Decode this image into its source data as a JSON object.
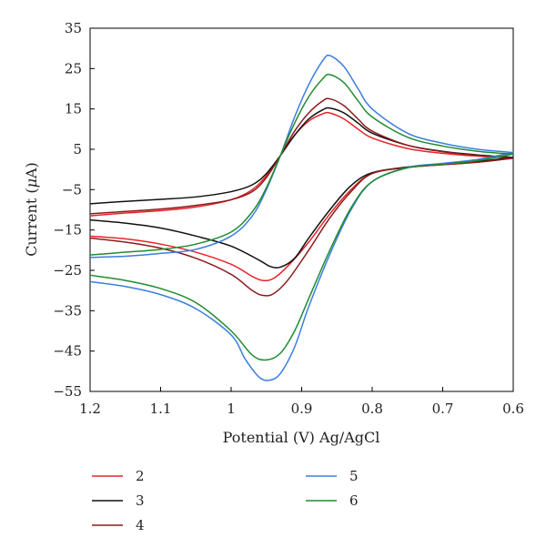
{
  "chart_data": {
    "type": "line",
    "title": "",
    "xlabel": "Potential (V) Ag/AgCl",
    "ylabel_prefix": "Current (",
    "ylabel_mu": "μ",
    "ylabel_suffix": "A)",
    "xlim": [
      1.2,
      0.6
    ],
    "ylim": [
      -55,
      35
    ],
    "x_reversed": true,
    "x_ticks": [
      1.2,
      1.1,
      1.0,
      0.9,
      0.8,
      0.7,
      0.6
    ],
    "x_tick_labels": [
      "1.2",
      "1.1",
      "1",
      "0.9",
      "0.8",
      "0.7",
      "0.6"
    ],
    "y_ticks": [
      35,
      25,
      15,
      5,
      -5,
      -15,
      -25,
      -35,
      -45,
      -55
    ],
    "y_tick_labels": [
      "35",
      "25",
      "15",
      "5",
      "−5",
      "−15",
      "−25",
      "−35",
      "−45",
      "−55"
    ],
    "grid": false,
    "legend_position": "bottom",
    "series": [
      {
        "name": "2",
        "color": "#e8242b",
        "forward": [
          [
            1.2,
            -11.5
          ],
          [
            1.15,
            -10.8
          ],
          [
            1.1,
            -10.2
          ],
          [
            1.05,
            -9.3
          ],
          [
            1.0,
            -7.5
          ],
          [
            0.97,
            -5.0
          ],
          [
            0.95,
            -1.5
          ],
          [
            0.93,
            3.5
          ],
          [
            0.91,
            8.5
          ],
          [
            0.89,
            12.0
          ],
          [
            0.87,
            13.8
          ],
          [
            0.86,
            14.0
          ],
          [
            0.84,
            12.5
          ],
          [
            0.82,
            10.0
          ],
          [
            0.8,
            7.8
          ],
          [
            0.75,
            5.2
          ],
          [
            0.7,
            4.0
          ],
          [
            0.65,
            3.3
          ],
          [
            0.6,
            2.8
          ]
        ],
        "reverse": [
          [
            0.6,
            2.8
          ],
          [
            0.65,
            1.8
          ],
          [
            0.7,
            1.2
          ],
          [
            0.75,
            0.5
          ],
          [
            0.8,
            -1.0
          ],
          [
            0.83,
            -5.0
          ],
          [
            0.86,
            -11.0
          ],
          [
            0.89,
            -18.0
          ],
          [
            0.92,
            -24.0
          ],
          [
            0.94,
            -27.0
          ],
          [
            0.955,
            -27.5
          ],
          [
            0.97,
            -26.5
          ],
          [
            1.0,
            -23.5
          ],
          [
            1.05,
            -20.5
          ],
          [
            1.1,
            -18.5
          ],
          [
            1.15,
            -17.2
          ],
          [
            1.2,
            -16.5
          ]
        ]
      },
      {
        "name": "3",
        "color": "#111111",
        "forward": [
          [
            1.2,
            -8.5
          ],
          [
            1.15,
            -7.9
          ],
          [
            1.1,
            -7.4
          ],
          [
            1.05,
            -6.8
          ],
          [
            1.0,
            -5.5
          ],
          [
            0.97,
            -3.8
          ],
          [
            0.95,
            -1.0
          ],
          [
            0.93,
            3.5
          ],
          [
            0.91,
            8.5
          ],
          [
            0.89,
            12.5
          ],
          [
            0.87,
            14.8
          ],
          [
            0.86,
            15.2
          ],
          [
            0.84,
            14.0
          ],
          [
            0.82,
            11.5
          ],
          [
            0.8,
            9.0
          ],
          [
            0.75,
            6.0
          ],
          [
            0.7,
            4.5
          ],
          [
            0.65,
            3.6
          ],
          [
            0.6,
            3.0
          ]
        ],
        "reverse": [
          [
            0.6,
            3.0
          ],
          [
            0.65,
            2.0
          ],
          [
            0.7,
            1.3
          ],
          [
            0.75,
            0.6
          ],
          [
            0.8,
            -0.8
          ],
          [
            0.83,
            -4.0
          ],
          [
            0.86,
            -10.0
          ],
          [
            0.89,
            -17.0
          ],
          [
            0.91,
            -22.0
          ],
          [
            0.93,
            -24.2
          ],
          [
            0.945,
            -24.0
          ],
          [
            0.96,
            -22.5
          ],
          [
            1.0,
            -19.0
          ],
          [
            1.05,
            -16.5
          ],
          [
            1.1,
            -14.5
          ],
          [
            1.15,
            -13.3
          ],
          [
            1.2,
            -12.5
          ]
        ]
      },
      {
        "name": "4",
        "color": "#8b1a1a",
        "forward": [
          [
            1.2,
            -11.0
          ],
          [
            1.15,
            -10.4
          ],
          [
            1.1,
            -9.8
          ],
          [
            1.05,
            -8.9
          ],
          [
            1.0,
            -7.5
          ],
          [
            0.97,
            -5.5
          ],
          [
            0.95,
            -2.0
          ],
          [
            0.93,
            3.5
          ],
          [
            0.91,
            9.5
          ],
          [
            0.89,
            14.0
          ],
          [
            0.87,
            17.0
          ],
          [
            0.86,
            17.5
          ],
          [
            0.84,
            15.8
          ],
          [
            0.82,
            12.5
          ],
          [
            0.8,
            9.5
          ],
          [
            0.75,
            6.0
          ],
          [
            0.7,
            4.4
          ],
          [
            0.65,
            3.5
          ],
          [
            0.6,
            2.8
          ]
        ],
        "reverse": [
          [
            0.6,
            2.8
          ],
          [
            0.65,
            1.8
          ],
          [
            0.7,
            1.2
          ],
          [
            0.75,
            0.5
          ],
          [
            0.8,
            -1.0
          ],
          [
            0.83,
            -5.5
          ],
          [
            0.86,
            -12.0
          ],
          [
            0.89,
            -20.0
          ],
          [
            0.92,
            -27.5
          ],
          [
            0.94,
            -30.8
          ],
          [
            0.955,
            -31.2
          ],
          [
            0.97,
            -30.0
          ],
          [
            1.0,
            -26.0
          ],
          [
            1.05,
            -22.0
          ],
          [
            1.1,
            -19.5
          ],
          [
            1.15,
            -18.0
          ],
          [
            1.2,
            -17.0
          ]
        ]
      },
      {
        "name": "5",
        "color": "#3b7ddd",
        "forward": [
          [
            1.2,
            -21.8
          ],
          [
            1.15,
            -21.5
          ],
          [
            1.1,
            -20.8
          ],
          [
            1.05,
            -19.8
          ],
          [
            1.0,
            -16.5
          ],
          [
            0.97,
            -11.5
          ],
          [
            0.95,
            -5.0
          ],
          [
            0.93,
            3.5
          ],
          [
            0.91,
            13.0
          ],
          [
            0.89,
            21.0
          ],
          [
            0.87,
            27.0
          ],
          [
            0.86,
            28.2
          ],
          [
            0.84,
            25.5
          ],
          [
            0.82,
            20.0
          ],
          [
            0.8,
            15.0
          ],
          [
            0.75,
            9.0
          ],
          [
            0.7,
            6.5
          ],
          [
            0.65,
            5.0
          ],
          [
            0.6,
            4.2
          ]
        ],
        "reverse": [
          [
            0.6,
            4.2
          ],
          [
            0.65,
            2.5
          ],
          [
            0.7,
            1.5
          ],
          [
            0.75,
            0.5
          ],
          [
            0.8,
            -3.0
          ],
          [
            0.83,
            -10.0
          ],
          [
            0.86,
            -21.0
          ],
          [
            0.89,
            -34.0
          ],
          [
            0.91,
            -44.0
          ],
          [
            0.93,
            -50.5
          ],
          [
            0.945,
            -52.2
          ],
          [
            0.96,
            -51.5
          ],
          [
            0.98,
            -47.0
          ],
          [
            1.0,
            -41.0
          ],
          [
            1.05,
            -34.5
          ],
          [
            1.1,
            -31.0
          ],
          [
            1.15,
            -29.0
          ],
          [
            1.2,
            -27.8
          ]
        ]
      },
      {
        "name": "6",
        "color": "#1e8c2e",
        "forward": [
          [
            1.2,
            -21.2
          ],
          [
            1.15,
            -20.5
          ],
          [
            1.1,
            -19.8
          ],
          [
            1.05,
            -18.5
          ],
          [
            1.0,
            -15.5
          ],
          [
            0.97,
            -10.5
          ],
          [
            0.95,
            -4.5
          ],
          [
            0.93,
            3.5
          ],
          [
            0.91,
            11.5
          ],
          [
            0.89,
            18.0
          ],
          [
            0.87,
            22.5
          ],
          [
            0.86,
            23.5
          ],
          [
            0.84,
            21.5
          ],
          [
            0.82,
            17.0
          ],
          [
            0.8,
            13.0
          ],
          [
            0.75,
            8.0
          ],
          [
            0.7,
            5.8
          ],
          [
            0.65,
            4.5
          ],
          [
            0.6,
            3.8
          ]
        ],
        "reverse": [
          [
            0.6,
            3.8
          ],
          [
            0.65,
            2.2
          ],
          [
            0.7,
            1.3
          ],
          [
            0.75,
            0.4
          ],
          [
            0.8,
            -3.0
          ],
          [
            0.83,
            -9.5
          ],
          [
            0.86,
            -20.0
          ],
          [
            0.89,
            -32.0
          ],
          [
            0.91,
            -40.0
          ],
          [
            0.93,
            -45.5
          ],
          [
            0.95,
            -47.2
          ],
          [
            0.97,
            -46.0
          ],
          [
            1.0,
            -40.0
          ],
          [
            1.05,
            -33.0
          ],
          [
            1.1,
            -29.5
          ],
          [
            1.15,
            -27.5
          ],
          [
            1.2,
            -26.2
          ]
        ]
      }
    ]
  }
}
